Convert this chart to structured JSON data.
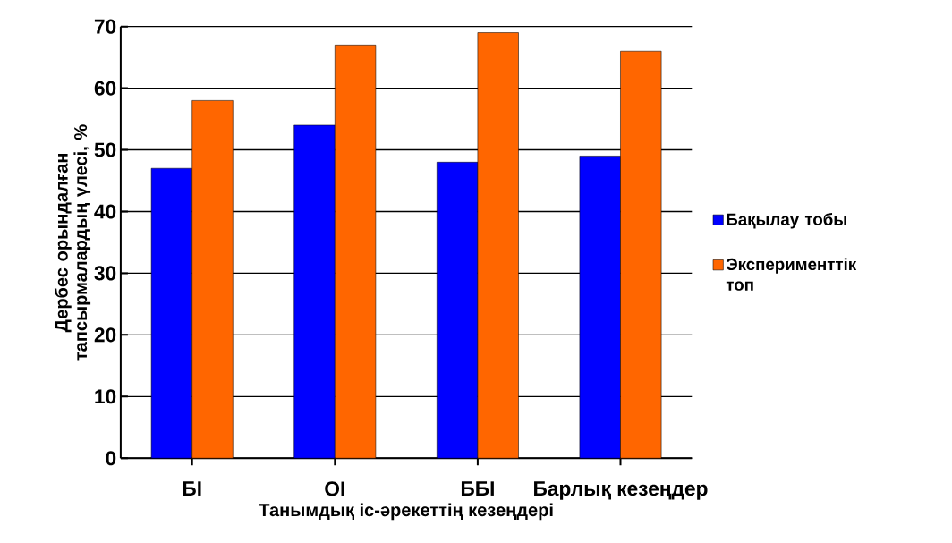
{
  "chart_data": {
    "type": "bar",
    "xlabel": "Танымдық іс-әрекеттің кезеңдері",
    "ylabel": "Дербес орындалған тапсырмалардың үлесі, %",
    "categories": [
      "БІ",
      "ОІ",
      "ББІ",
      "Барлық кезеңдер"
    ],
    "series": [
      {
        "name": "Бақылау тобы",
        "color": "#0000ff",
        "values": [
          47,
          54,
          48,
          49
        ]
      },
      {
        "name": "Эксперименттік топ",
        "color": "#ff6600",
        "values": [
          58,
          67,
          69,
          66
        ]
      }
    ],
    "ylim": [
      0,
      70
    ],
    "yticks": [
      0,
      10,
      20,
      30,
      40,
      50,
      60,
      70
    ],
    "grid": "y",
    "legend": "right"
  }
}
